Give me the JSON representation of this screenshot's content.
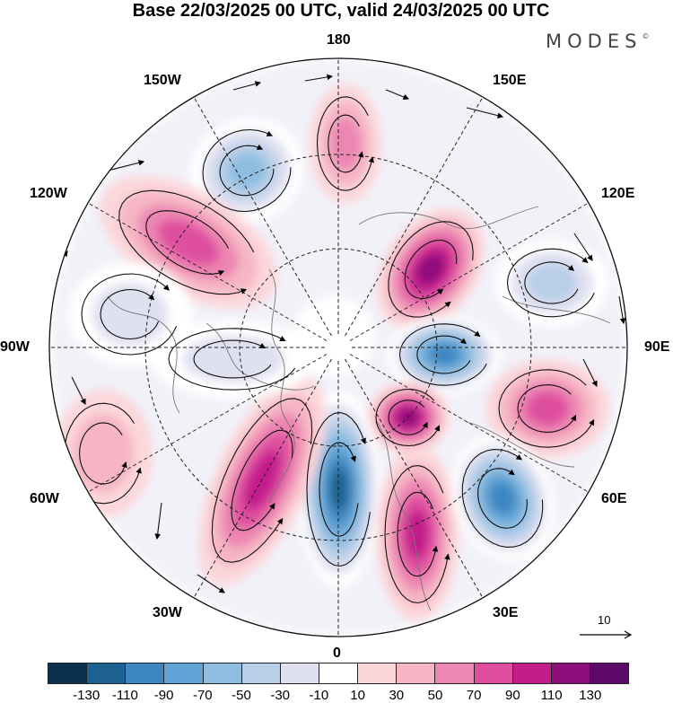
{
  "header": {
    "title": "Base 22/03/2025 00 UTC, valid 24/03/2025 00 UTC",
    "brand": "MODES",
    "brand_mark": "©"
  },
  "map": {
    "projection": "north-polar-stereographic",
    "field": "anomaly",
    "longitude_labels": {
      "deg180": "180",
      "w150": "150W",
      "e150": "150E",
      "w120": "120W",
      "e120": "120E",
      "w90": "90W",
      "e90": "90E",
      "w60": "60W",
      "e60": "60E",
      "w30": "30W",
      "e30": "30E",
      "deg0": "0"
    },
    "vector_reference": "10",
    "anomaly_centers": [
      {
        "id": "neg-1",
        "sign": "negative",
        "strength": -70
      },
      {
        "id": "pos-1",
        "sign": "positive",
        "strength": 50
      },
      {
        "id": "pos-2",
        "sign": "positive",
        "strength": 80
      },
      {
        "id": "pos-3",
        "sign": "positive",
        "strength": 110
      },
      {
        "id": "neg-2",
        "sign": "negative",
        "strength": -110
      },
      {
        "id": "pos-4",
        "sign": "positive",
        "strength": 120
      },
      {
        "id": "pos-5",
        "sign": "positive",
        "strength": 70
      },
      {
        "id": "neg-3",
        "sign": "negative",
        "strength": -130
      },
      {
        "id": "pos-6",
        "sign": "positive",
        "strength": 100
      },
      {
        "id": "pos-7",
        "sign": "positive",
        "strength": 100
      },
      {
        "id": "neg-4",
        "sign": "negative",
        "strength": -110
      },
      {
        "id": "pos-8",
        "sign": "positive",
        "strength": 30
      },
      {
        "id": "neg-5",
        "sign": "negative",
        "strength": -40
      },
      {
        "id": "neg-6",
        "sign": "negative",
        "strength": -40
      },
      {
        "id": "neg-7",
        "sign": "negative",
        "strength": -60
      }
    ]
  },
  "colorbar": {
    "colors": [
      "#0b3150",
      "#1d6190",
      "#3d86c0",
      "#61a3d4",
      "#8fbde0",
      "#b9cfe8",
      "#dfe0f0",
      "#ffffff",
      "#fbd7da",
      "#f6b5c4",
      "#ec86b2",
      "#df4f9f",
      "#c31d8c",
      "#8e0f7c",
      "#5c0a6a"
    ],
    "ticks": [
      "-130",
      "-110",
      "-90",
      "-70",
      "-50",
      "-30",
      "-10",
      "10",
      "30",
      "50",
      "70",
      "90",
      "110",
      "130"
    ]
  }
}
